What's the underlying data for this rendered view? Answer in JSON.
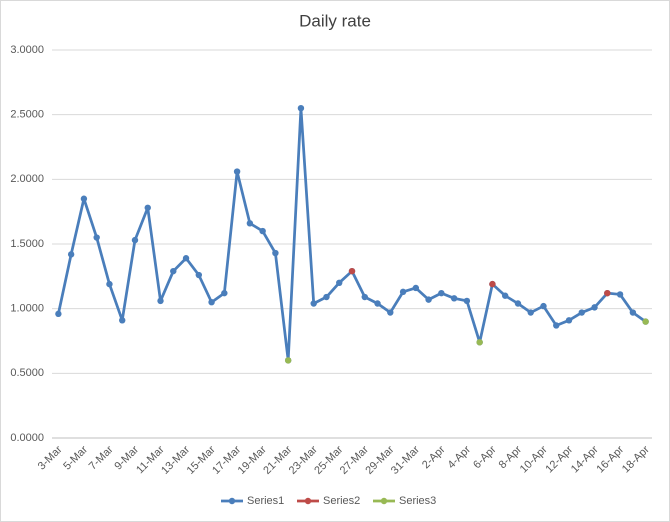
{
  "chart_data": {
    "type": "line",
    "title": "Daily rate",
    "categories": [
      "3-Mar",
      null,
      "5-Mar",
      null,
      "7-Mar",
      null,
      "9-Mar",
      null,
      "11-Mar",
      null,
      "13-Mar",
      null,
      "15-Mar",
      null,
      "17-Mar",
      null,
      "19-Mar",
      null,
      "21-Mar",
      null,
      "23-Mar",
      null,
      "25-Mar",
      null,
      "27-Mar",
      null,
      "29-Mar",
      null,
      "31-Mar",
      null,
      "2-Apr",
      null,
      "4-Apr",
      null,
      "6-Apr",
      null,
      "8-Apr",
      null,
      "10-Apr",
      null,
      "12-Apr",
      null,
      "14-Apr",
      null,
      "16-Apr",
      null,
      "18-Apr"
    ],
    "series": [
      {
        "name": "Series1",
        "color": "#4a7ebb",
        "values": [
          0.96,
          1.42,
          1.85,
          1.55,
          1.19,
          0.91,
          1.53,
          1.78,
          1.06,
          1.29,
          1.39,
          1.26,
          1.05,
          1.12,
          2.06,
          1.66,
          1.6,
          1.43,
          0.6,
          2.55,
          1.04,
          1.09,
          1.2,
          1.29,
          1.09,
          1.04,
          0.97,
          1.13,
          1.16,
          1.07,
          1.12,
          1.08,
          1.06,
          0.74,
          1.19,
          1.1,
          1.04,
          0.97,
          1.02,
          0.87,
          0.91,
          0.97,
          1.01,
          1.12,
          1.11,
          0.97,
          0.9
        ]
      },
      {
        "name": "Series2",
        "color": "#be4b48",
        "values": [
          null,
          null,
          null,
          null,
          null,
          null,
          null,
          null,
          null,
          null,
          null,
          null,
          null,
          null,
          null,
          null,
          null,
          null,
          null,
          null,
          null,
          null,
          null,
          1.29,
          null,
          null,
          null,
          null,
          null,
          null,
          null,
          null,
          null,
          null,
          1.19,
          null,
          null,
          null,
          null,
          null,
          null,
          null,
          null,
          1.12,
          null,
          null,
          null
        ]
      },
      {
        "name": "Series3",
        "color": "#98b954",
        "values": [
          null,
          null,
          null,
          null,
          null,
          null,
          null,
          null,
          null,
          null,
          null,
          null,
          null,
          null,
          null,
          null,
          null,
          null,
          0.6,
          null,
          null,
          null,
          null,
          null,
          null,
          null,
          null,
          null,
          null,
          null,
          null,
          null,
          null,
          0.74,
          null,
          null,
          null,
          null,
          null,
          null,
          null,
          null,
          null,
          null,
          null,
          null,
          0.9
        ]
      }
    ],
    "ylim": [
      0,
      3
    ],
    "yticks": [
      {
        "value": 0,
        "label": "0.0000"
      },
      {
        "value": 0.5,
        "label": "0.5000"
      },
      {
        "value": 1,
        "label": "1.0000"
      },
      {
        "value": 1.5,
        "label": "1.5000"
      },
      {
        "value": 2,
        "label": "2.0000"
      },
      {
        "value": 2.5,
        "label": "2.5000"
      },
      {
        "value": 3,
        "label": "3.0000"
      }
    ],
    "grid": true,
    "legend": "bottom"
  }
}
